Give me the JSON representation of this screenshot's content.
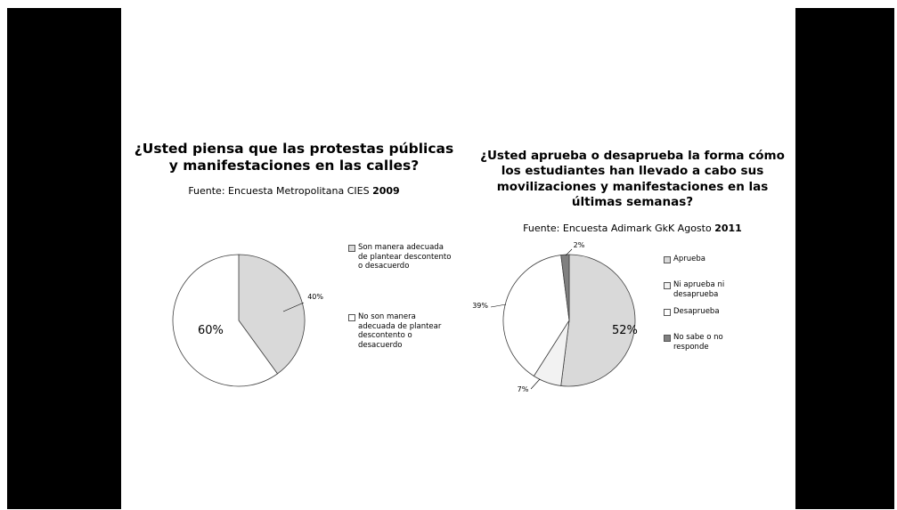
{
  "chart_data": [
    {
      "type": "pie",
      "title": "¿Usted piensa que las protestas públicas y manifestaciones en las calles?",
      "source": "Fuente: Encuesta Metropolitana CIES",
      "source_year": "2009",
      "slices": [
        {
          "label": "Son manera adecuada de plantear descontento o desacuerdo",
          "value": 40,
          "value_label": "40%",
          "color": "#d9d9d9"
        },
        {
          "label": "No son manera adecuada de plantear descontento o desacuerdo",
          "value": 60,
          "value_label": "60%",
          "color": "#ffffff"
        }
      ],
      "legend_position": "right"
    },
    {
      "type": "pie",
      "title": "¿Usted aprueba o desaprueba la forma cómo los estudiantes han llevado a cabo sus movilizaciones y manifestaciones en las últimas semanas?",
      "source": "Fuente: Encuesta Adimark GkK Agosto",
      "source_year": "2011",
      "slices": [
        {
          "label": "Aprueba",
          "value": 52,
          "value_label": "52%",
          "color": "#d9d9d9"
        },
        {
          "label": "Ni aprueba ni desaprueba",
          "value": 7,
          "value_label": "7%",
          "color": "#f2f2f2"
        },
        {
          "label": "Desaprueba",
          "value": 39,
          "value_label": "39%",
          "color": "#ffffff"
        },
        {
          "label": "No sabe o no responde",
          "value": 2,
          "value_label": "2%",
          "color": "#808080"
        }
      ],
      "legend_position": "right"
    }
  ]
}
